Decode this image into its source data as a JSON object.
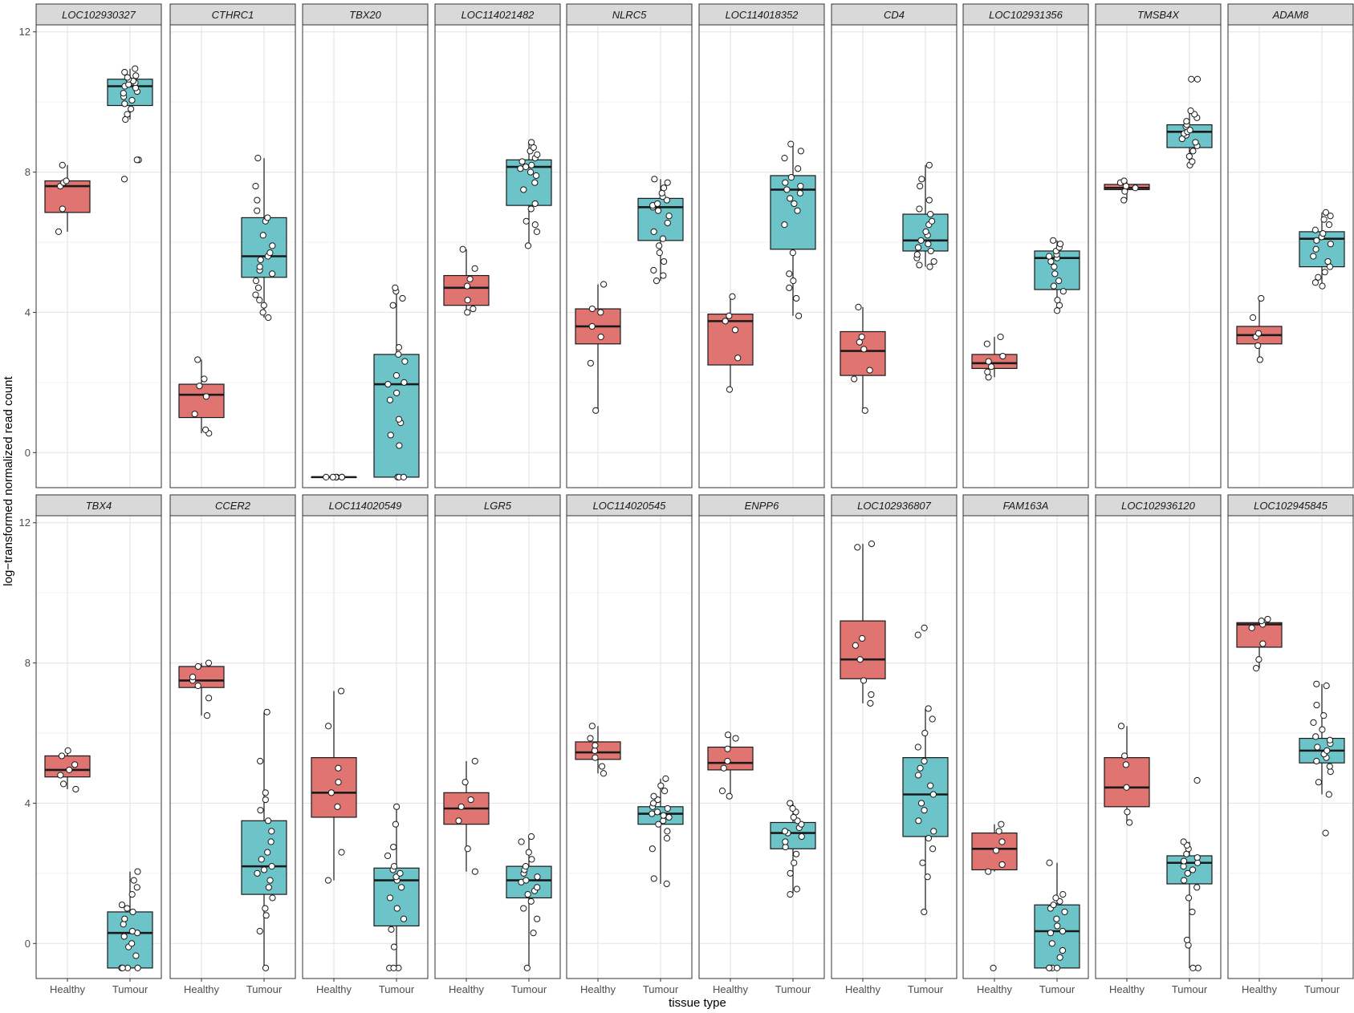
{
  "chart_data": {
    "type": "boxplot",
    "title": "",
    "xlabel": "tissue type",
    "ylabel": "log−transformed normalized read count",
    "categories": [
      "Healthy",
      "Tumour"
    ],
    "ylim": [
      -1.0,
      12.2
    ],
    "yticks": [
      0,
      4,
      8,
      12
    ],
    "yticklabels": [
      "0",
      "4",
      "8",
      "12"
    ],
    "grid": true,
    "colors": {
      "Healthy": "#e07470",
      "Tumour": "#6cc3c8"
    },
    "panels": [
      {
        "gene": "LOC102930327",
        "healthy": {
          "q1": 6.85,
          "median": 7.6,
          "q3": 7.75,
          "min": 6.3,
          "max": 8.2,
          "points": [
            6.3,
            6.95,
            7.6,
            7.7,
            7.75,
            8.2
          ]
        },
        "tumour": {
          "q1": 9.9,
          "median": 10.45,
          "q3": 10.65,
          "min": 9.5,
          "max": 10.95,
          "points": [
            7.8,
            8.35,
            8.35,
            9.5,
            9.65,
            9.8,
            9.95,
            10.05,
            10.15,
            10.25,
            10.3,
            10.4,
            10.45,
            10.5,
            10.55,
            10.6,
            10.65,
            10.7,
            10.75,
            10.85,
            10.95
          ]
        }
      },
      {
        "gene": "CTHRC1",
        "healthy": {
          "q1": 1.0,
          "median": 1.65,
          "q3": 1.95,
          "min": 0.55,
          "max": 2.65,
          "points": [
            0.55,
            0.65,
            1.1,
            1.6,
            1.9,
            2.1,
            2.65
          ]
        },
        "tumour": {
          "q1": 5.0,
          "median": 5.6,
          "q3": 6.7,
          "min": 3.85,
          "max": 8.4,
          "points": [
            3.85,
            4.0,
            4.2,
            4.35,
            4.5,
            4.7,
            4.9,
            5.1,
            5.2,
            5.3,
            5.5,
            5.6,
            5.7,
            5.9,
            6.2,
            6.6,
            6.7,
            6.9,
            7.2,
            7.6,
            8.4
          ]
        }
      },
      {
        "gene": "TBX20",
        "healthy": {
          "q1": -0.7,
          "median": -0.7,
          "q3": -0.7,
          "min": -0.7,
          "max": -0.7,
          "points": [
            -0.7,
            -0.7,
            -0.7,
            -0.7,
            -0.7,
            -0.7
          ]
        },
        "tumour": {
          "q1": -0.7,
          "median": 1.95,
          "q3": 2.8,
          "min": -0.7,
          "max": 4.7,
          "points": [
            -0.7,
            -0.7,
            -0.7,
            0.2,
            0.5,
            0.85,
            0.95,
            1.5,
            1.7,
            1.95,
            2.0,
            2.2,
            2.6,
            2.8,
            3.0,
            4.2,
            4.4,
            4.6,
            4.7
          ]
        }
      },
      {
        "gene": "LOC114021482",
        "healthy": {
          "q1": 4.2,
          "median": 4.7,
          "q3": 5.05,
          "min": 4.0,
          "max": 5.8,
          "points": [
            4.0,
            4.1,
            4.35,
            4.75,
            4.95,
            5.25,
            5.8
          ]
        },
        "tumour": {
          "q1": 7.05,
          "median": 8.15,
          "q3": 8.35,
          "min": 5.9,
          "max": 8.85,
          "points": [
            5.9,
            6.3,
            6.5,
            6.6,
            6.95,
            7.1,
            7.5,
            7.7,
            7.9,
            8.0,
            8.1,
            8.15,
            8.2,
            8.3,
            8.4,
            8.5,
            8.6,
            8.7,
            8.85
          ]
        }
      },
      {
        "gene": "NLRC5",
        "healthy": {
          "q1": 3.1,
          "median": 3.6,
          "q3": 4.1,
          "min": 1.2,
          "max": 4.8,
          "points": [
            1.2,
            2.55,
            3.3,
            3.6,
            4.0,
            4.1,
            4.8
          ]
        },
        "tumour": {
          "q1": 6.05,
          "median": 7.0,
          "q3": 7.25,
          "min": 4.9,
          "max": 7.8,
          "points": [
            4.9,
            5.05,
            5.2,
            5.45,
            5.7,
            5.9,
            6.1,
            6.3,
            6.55,
            6.75,
            6.9,
            7.0,
            7.05,
            7.1,
            7.2,
            7.3,
            7.4,
            7.55,
            7.7,
            7.8
          ]
        }
      },
      {
        "gene": "LOC114018352",
        "healthy": {
          "q1": 2.5,
          "median": 3.75,
          "q3": 3.95,
          "min": 1.8,
          "max": 4.45,
          "points": [
            1.8,
            2.7,
            3.5,
            3.75,
            3.9,
            4.45
          ]
        },
        "tumour": {
          "q1": 5.8,
          "median": 7.5,
          "q3": 7.9,
          "min": 3.9,
          "max": 8.8,
          "points": [
            3.9,
            4.4,
            4.7,
            4.9,
            5.1,
            5.7,
            6.5,
            6.9,
            7.1,
            7.25,
            7.4,
            7.5,
            7.6,
            7.7,
            7.85,
            8.1,
            8.4,
            8.6,
            8.8
          ]
        }
      },
      {
        "gene": "CD4",
        "healthy": {
          "q1": 2.2,
          "median": 2.9,
          "q3": 3.45,
          "min": 1.2,
          "max": 4.15,
          "points": [
            1.2,
            2.1,
            2.35,
            2.95,
            3.15,
            3.3,
            4.15
          ]
        },
        "tumour": {
          "q1": 5.75,
          "median": 6.05,
          "q3": 6.8,
          "min": 5.3,
          "max": 8.2,
          "points": [
            5.3,
            5.35,
            5.45,
            5.55,
            5.65,
            5.75,
            5.85,
            5.95,
            6.05,
            6.2,
            6.3,
            6.5,
            6.6,
            6.8,
            6.95,
            7.2,
            7.6,
            7.8,
            8.2
          ]
        }
      },
      {
        "gene": "LOC102931356",
        "healthy": {
          "q1": 2.4,
          "median": 2.55,
          "q3": 2.8,
          "min": 2.15,
          "max": 3.3,
          "points": [
            2.15,
            2.3,
            2.45,
            2.6,
            2.75,
            3.1,
            3.3
          ]
        },
        "tumour": {
          "q1": 4.65,
          "median": 5.55,
          "q3": 5.75,
          "min": 4.05,
          "max": 6.05,
          "points": [
            4.05,
            4.2,
            4.35,
            4.6,
            4.75,
            4.9,
            5.1,
            5.3,
            5.45,
            5.55,
            5.6,
            5.65,
            5.75,
            5.85,
            5.95,
            6.05
          ]
        }
      },
      {
        "gene": "TMSB4X",
        "healthy": {
          "q1": 7.5,
          "median": 7.55,
          "q3": 7.65,
          "min": 7.2,
          "max": 7.75,
          "points": [
            7.2,
            7.45,
            7.55,
            7.6,
            7.7,
            7.75
          ]
        },
        "tumour": {
          "q1": 8.7,
          "median": 9.15,
          "q3": 9.35,
          "min": 8.2,
          "max": 9.75,
          "points": [
            8.2,
            8.3,
            8.45,
            8.6,
            8.75,
            8.85,
            8.95,
            9.05,
            9.1,
            9.15,
            9.2,
            9.3,
            9.35,
            9.45,
            9.55,
            9.65,
            9.75,
            10.65,
            10.65
          ]
        }
      },
      {
        "gene": "ADAM8",
        "healthy": {
          "q1": 3.1,
          "median": 3.35,
          "q3": 3.6,
          "min": 2.65,
          "max": 4.4,
          "points": [
            2.65,
            3.05,
            3.3,
            3.4,
            3.85,
            4.4
          ]
        },
        "tumour": {
          "q1": 5.3,
          "median": 6.1,
          "q3": 6.3,
          "min": 4.75,
          "max": 6.85,
          "points": [
            4.75,
            4.85,
            5.0,
            5.15,
            5.3,
            5.45,
            5.6,
            5.8,
            5.95,
            6.05,
            6.15,
            6.25,
            6.35,
            6.5,
            6.65,
            6.75,
            6.85
          ]
        }
      },
      {
        "gene": "TBX4",
        "healthy": {
          "q1": 4.75,
          "median": 4.95,
          "q3": 5.35,
          "min": 4.4,
          "max": 5.5,
          "points": [
            4.4,
            4.55,
            4.8,
            4.95,
            5.1,
            5.35,
            5.5
          ]
        },
        "tumour": {
          "q1": -0.7,
          "median": 0.3,
          "q3": 0.9,
          "min": -0.7,
          "max": 2.05,
          "points": [
            -0.7,
            -0.7,
            -0.7,
            -0.7,
            -0.35,
            -0.1,
            0.0,
            0.2,
            0.3,
            0.35,
            0.55,
            0.7,
            0.9,
            1.0,
            1.1,
            1.4,
            1.6,
            1.8,
            2.05
          ]
        }
      },
      {
        "gene": "CCER2",
        "healthy": {
          "q1": 7.3,
          "median": 7.5,
          "q3": 7.9,
          "min": 6.5,
          "max": 8.0,
          "points": [
            6.5,
            7.0,
            7.35,
            7.5,
            7.6,
            7.9,
            8.0
          ]
        },
        "tumour": {
          "q1": 1.4,
          "median": 2.2,
          "q3": 3.5,
          "min": -0.7,
          "max": 6.6,
          "points": [
            -0.7,
            0.35,
            0.8,
            1.0,
            1.3,
            1.6,
            1.8,
            2.0,
            2.1,
            2.2,
            2.4,
            2.6,
            2.9,
            3.2,
            3.5,
            3.8,
            4.1,
            4.3,
            5.2,
            6.6
          ]
        }
      },
      {
        "gene": "LOC114020549",
        "healthy": {
          "q1": 3.6,
          "median": 4.3,
          "q3": 5.3,
          "min": 1.8,
          "max": 7.2,
          "points": [
            1.8,
            2.6,
            3.9,
            4.3,
            4.6,
            5.0,
            6.2,
            7.2
          ]
        },
        "tumour": {
          "q1": 0.5,
          "median": 1.8,
          "q3": 2.15,
          "min": -0.7,
          "max": 3.9,
          "points": [
            -0.7,
            -0.7,
            -0.7,
            -0.1,
            0.4,
            0.7,
            1.0,
            1.3,
            1.6,
            1.8,
            1.9,
            2.0,
            2.1,
            2.2,
            2.5,
            2.75,
            3.4,
            3.9
          ]
        }
      },
      {
        "gene": "LGR5",
        "healthy": {
          "q1": 3.4,
          "median": 3.85,
          "q3": 4.3,
          "min": 2.05,
          "max": 5.2,
          "points": [
            2.05,
            2.7,
            3.5,
            3.9,
            4.1,
            4.6,
            5.2
          ]
        },
        "tumour": {
          "q1": 1.3,
          "median": 1.8,
          "q3": 2.2,
          "min": -0.7,
          "max": 3.05,
          "points": [
            -0.7,
            0.3,
            0.7,
            1.0,
            1.2,
            1.4,
            1.5,
            1.6,
            1.75,
            1.8,
            1.9,
            2.0,
            2.1,
            2.2,
            2.4,
            2.6,
            2.9,
            3.05
          ]
        }
      },
      {
        "gene": "LOC114020545",
        "healthy": {
          "q1": 5.25,
          "median": 5.45,
          "q3": 5.75,
          "min": 4.85,
          "max": 6.2,
          "points": [
            4.85,
            5.05,
            5.3,
            5.5,
            5.65,
            5.85,
            6.2
          ]
        },
        "tumour": {
          "q1": 3.4,
          "median": 3.7,
          "q3": 3.9,
          "min": 1.7,
          "max": 4.7,
          "points": [
            1.7,
            1.85,
            2.7,
            3.0,
            3.2,
            3.4,
            3.5,
            3.6,
            3.65,
            3.7,
            3.75,
            3.85,
            3.9,
            4.0,
            4.1,
            4.2,
            4.35,
            4.5,
            4.7
          ]
        }
      },
      {
        "gene": "ENPP6",
        "healthy": {
          "q1": 4.95,
          "median": 5.15,
          "q3": 5.6,
          "min": 4.2,
          "max": 5.95,
          "points": [
            4.2,
            4.35,
            5.0,
            5.2,
            5.55,
            5.85,
            5.95
          ]
        },
        "tumour": {
          "q1": 2.7,
          "median": 3.15,
          "q3": 3.45,
          "min": 1.4,
          "max": 4.0,
          "points": [
            1.4,
            1.55,
            2.0,
            2.3,
            2.55,
            2.75,
            2.9,
            3.05,
            3.15,
            3.2,
            3.3,
            3.4,
            3.5,
            3.6,
            3.75,
            3.85,
            4.0
          ]
        }
      },
      {
        "gene": "LOC102936807",
        "healthy": {
          "q1": 7.55,
          "median": 8.1,
          "q3": 9.2,
          "min": 6.85,
          "max": 11.4,
          "points": [
            6.85,
            7.1,
            7.5,
            8.1,
            8.5,
            8.7,
            11.3,
            11.4
          ]
        },
        "tumour": {
          "q1": 3.05,
          "median": 4.25,
          "q3": 5.3,
          "min": 0.9,
          "max": 6.7,
          "points": [
            0.9,
            1.9,
            2.3,
            2.7,
            3.0,
            3.2,
            3.5,
            3.8,
            4.0,
            4.25,
            4.5,
            4.8,
            5.0,
            5.2,
            5.6,
            6.0,
            6.4,
            6.7,
            8.8,
            9.0
          ]
        }
      },
      {
        "gene": "FAM163A",
        "healthy": {
          "q1": 2.1,
          "median": 2.7,
          "q3": 3.15,
          "min": 2.05,
          "max": 3.4,
          "points": [
            -0.7,
            2.05,
            2.25,
            2.65,
            2.9,
            3.2,
            3.4
          ]
        },
        "tumour": {
          "q1": -0.7,
          "median": 0.35,
          "q3": 1.1,
          "min": -0.7,
          "max": 2.3,
          "points": [
            -0.7,
            -0.7,
            -0.7,
            -0.7,
            -0.4,
            -0.2,
            0.0,
            0.3,
            0.35,
            0.5,
            0.7,
            0.9,
            1.0,
            1.1,
            1.2,
            1.3,
            1.4,
            2.3
          ]
        }
      },
      {
        "gene": "LOC102936120",
        "healthy": {
          "q1": 3.9,
          "median": 4.45,
          "q3": 5.3,
          "min": 3.45,
          "max": 6.2,
          "points": [
            3.45,
            3.75,
            4.45,
            5.1,
            5.35,
            6.2
          ]
        },
        "tumour": {
          "q1": 1.7,
          "median": 2.3,
          "q3": 2.5,
          "min": -0.7,
          "max": 2.9,
          "points": [
            -0.7,
            -0.7,
            -0.05,
            0.1,
            0.9,
            1.3,
            1.6,
            1.8,
            2.0,
            2.1,
            2.2,
            2.3,
            2.35,
            2.45,
            2.55,
            2.7,
            2.8,
            2.9,
            4.65
          ]
        }
      },
      {
        "gene": "LOC102945845",
        "healthy": {
          "q1": 8.45,
          "median": 9.1,
          "q3": 9.15,
          "min": 7.85,
          "max": 9.25,
          "points": [
            7.85,
            8.1,
            8.55,
            9.0,
            9.1,
            9.2,
            9.25
          ]
        },
        "tumour": {
          "q1": 5.15,
          "median": 5.5,
          "q3": 5.85,
          "min": 4.25,
          "max": 7.4,
          "points": [
            3.15,
            4.25,
            4.6,
            4.9,
            5.05,
            5.2,
            5.3,
            5.4,
            5.5,
            5.6,
            5.7,
            5.8,
            5.9,
            6.1,
            6.3,
            6.5,
            6.8,
            7.35,
            7.4
          ]
        }
      }
    ]
  }
}
